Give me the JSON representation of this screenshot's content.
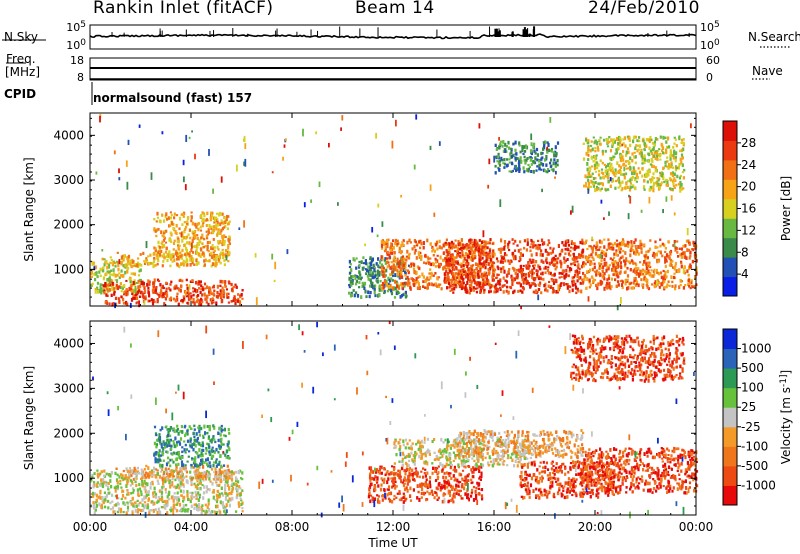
{
  "header": {
    "station": "Rankin Inlet (fitACF)",
    "beam": "Beam 14",
    "date": "24/Feb/2010"
  },
  "ancillary": {
    "nsky_label": "N.Sky",
    "nsearch_label": "N.Search",
    "freq_label": "Freq.",
    "freq_unit": "[MHz]",
    "nave_label": "Nave",
    "cpid_label": "CPID",
    "cpid_value": "normalsound (fast) 157",
    "noise_ticks": [
      "10^5",
      "10^0"
    ],
    "freq_ticks": [
      "18",
      "8"
    ],
    "nave_ticks": [
      "60",
      "0"
    ]
  },
  "colors": {
    "power": [
      "#0a1fe6",
      "#2250b4",
      "#3a8a4a",
      "#68b842",
      "#d8d020",
      "#f6a318",
      "#f27015",
      "#ec3a10",
      "#dd1008"
    ],
    "velocity": [
      "#e80a0a",
      "#ee4a14",
      "#f0761c",
      "#f49a28",
      "#c4c4c4",
      "#66c23a",
      "#2c9a54",
      "#2a64b8",
      "#0a28d8"
    ]
  },
  "chart_data": [
    {
      "type": "heatmap",
      "title": "",
      "quantity": "Power",
      "ylabel": "Slant Range [km]",
      "xlabel": "",
      "xlim": [
        "00:00",
        "24:00"
      ],
      "ylim": [
        180,
        4500
      ],
      "yticks": [
        1000,
        2000,
        3000,
        4000
      ],
      "colorbar_label": "Power [dB]",
      "colorbar_ticks": [
        4,
        8,
        12,
        16,
        20,
        24,
        28
      ],
      "colorbar_range": [
        0,
        32
      ],
      "echo_regions": [
        {
          "t_start": 0.0,
          "t_end": 2.0,
          "range_start": 500,
          "range_end": 1300,
          "level": 16
        },
        {
          "t_start": 0.5,
          "t_end": 6.0,
          "range_start": 250,
          "range_end": 800,
          "level": 26
        },
        {
          "t_start": 1.0,
          "t_end": 5.5,
          "range_start": 1100,
          "range_end": 1400,
          "level": 20
        },
        {
          "t_start": 2.5,
          "t_end": 5.5,
          "range_start": 1300,
          "range_end": 2300,
          "level": 18
        },
        {
          "t_start": 10.2,
          "t_end": 12.5,
          "range_start": 400,
          "range_end": 1300,
          "level": 8
        },
        {
          "t_start": 11.5,
          "t_end": 16.0,
          "range_start": 600,
          "range_end": 1700,
          "level": 24
        },
        {
          "t_start": 14.0,
          "t_end": 19.5,
          "range_start": 500,
          "range_end": 1700,
          "level": 26
        },
        {
          "t_start": 19.5,
          "t_end": 24.0,
          "range_start": 600,
          "range_end": 1700,
          "level": 22
        },
        {
          "t_start": 16.0,
          "t_end": 18.5,
          "range_start": 3200,
          "range_end": 3900,
          "level": 8
        },
        {
          "t_start": 19.5,
          "t_end": 23.5,
          "range_start": 2800,
          "range_end": 4000,
          "level": 16
        }
      ]
    },
    {
      "type": "heatmap",
      "title": "",
      "quantity": "Velocity",
      "ylabel": "Slant Range [km]",
      "xlabel": "Time UT",
      "xlim": [
        "00:00",
        "24:00"
      ],
      "xticks": [
        "00:00",
        "04:00",
        "08:00",
        "12:00",
        "16:00",
        "20:00",
        "00:00"
      ],
      "ylim": [
        180,
        4500
      ],
      "yticks": [
        1000,
        2000,
        3000,
        4000
      ],
      "colorbar_label": "Velocity [m s^-1]",
      "colorbar_ticks": [
        1000,
        500,
        100,
        25,
        -25,
        -100,
        -500,
        -1000
      ],
      "echo_regions": [
        {
          "t_start": 0.0,
          "t_end": 6.0,
          "range_start": 250,
          "range_end": 1200,
          "level": 80
        },
        {
          "t_start": 1.0,
          "t_end": 5.5,
          "range_start": 1000,
          "range_end": 1300,
          "level": 10
        },
        {
          "t_start": 2.5,
          "t_end": 5.5,
          "range_start": 1300,
          "range_end": 2200,
          "level": 700
        },
        {
          "t_start": 11.0,
          "t_end": 15.5,
          "range_start": 500,
          "range_end": 1300,
          "level": -300
        },
        {
          "t_start": 12.0,
          "t_end": 17.5,
          "range_start": 1300,
          "range_end": 1900,
          "level": 60
        },
        {
          "t_start": 14.5,
          "t_end": 19.5,
          "range_start": 1500,
          "range_end": 2100,
          "level": 0
        },
        {
          "t_start": 17.0,
          "t_end": 21.0,
          "range_start": 600,
          "range_end": 1400,
          "level": -200
        },
        {
          "t_start": 19.5,
          "t_end": 24.0,
          "range_start": 700,
          "range_end": 1700,
          "level": -350
        },
        {
          "t_start": 19.0,
          "t_end": 23.5,
          "range_start": 3200,
          "range_end": 4200,
          "level": -400
        }
      ]
    }
  ]
}
